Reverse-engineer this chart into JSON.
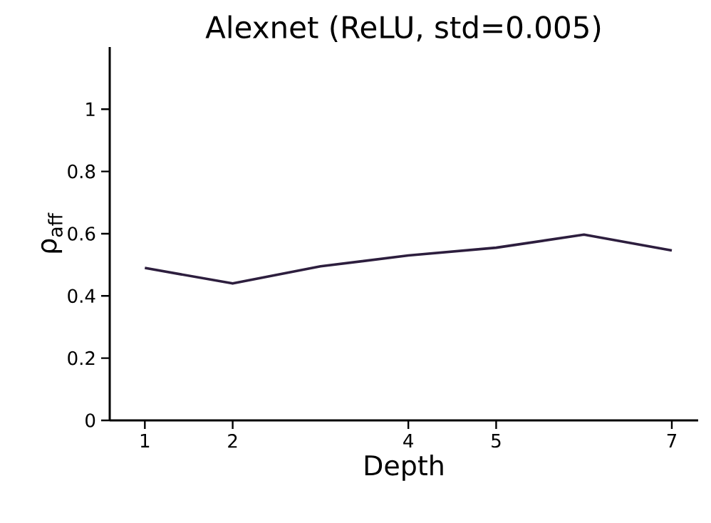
{
  "chart_data": {
    "type": "line",
    "title": "Alexnet (ReLU, std=0.005)",
    "xlabel": "Depth",
    "ylabel": "ρ$_{aff}$",
    "x": [
      1,
      2,
      3,
      4,
      5,
      6,
      7
    ],
    "series": [
      {
        "color": "#2d1e3e",
        "values": [
          0.49,
          0.44,
          0.495,
          0.53,
          0.555,
          0.597,
          0.546
        ]
      }
    ],
    "xlim": [
      0.6,
      7.3
    ],
    "ylim": [
      0,
      1.2
    ],
    "xticks": [
      1,
      2,
      4,
      5,
      7
    ],
    "yticks": [
      0,
      0.2,
      0.4,
      0.6,
      0.8,
      1
    ],
    "grid": false,
    "marker": "none",
    "line_style": "solid"
  }
}
